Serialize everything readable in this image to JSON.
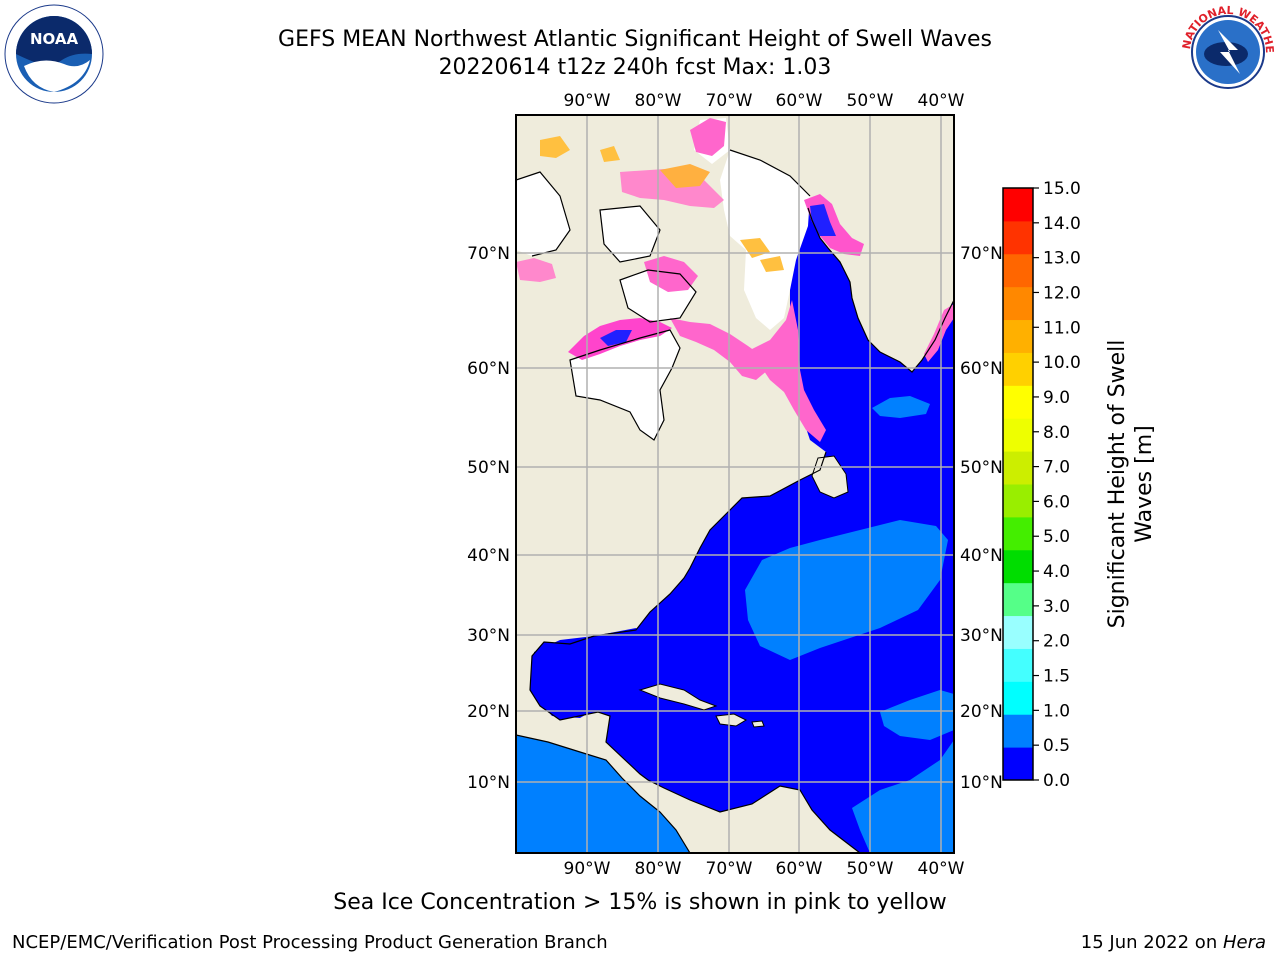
{
  "title_line1": "GEFS MEAN Northwest Atlantic Significant Height of Swell Waves",
  "title_line2": "20220614 t12z 240h fcst   Max: 1.03",
  "logos": {
    "left": "NOAA",
    "right": "National Weather Service"
  },
  "map": {
    "projection": "cylindrical",
    "lon_ticks": [
      "90°W",
      "80°W",
      "70°W",
      "60°W",
      "50°W",
      "40°W"
    ],
    "lat_ticks": [
      "70°N",
      "60°N",
      "50°N",
      "40°N",
      "30°N",
      "20°N",
      "10°N"
    ],
    "lon_range": [
      -100,
      -38
    ],
    "lat_range": [
      0,
      80
    ],
    "land_color": "#efecdc",
    "sea_ice_colors": [
      "#ff66cc",
      "#ff44aa",
      "#ffaa33",
      "#ffe040"
    ]
  },
  "colorbar": {
    "label_line1": "Significant Height of Swell",
    "label_line2": "Waves [m]",
    "ticks": [
      "15.0",
      "14.0",
      "13.0",
      "12.0",
      "11.0",
      "10.0",
      "9.0",
      "8.0",
      "7.0",
      "6.0",
      "5.0",
      "4.0",
      "3.0",
      "2.0",
      "1.5",
      "1.0",
      "0.5",
      "0.0"
    ],
    "colors_bottom_to_top": [
      "#0000ff",
      "#0080ff",
      "#00ffff",
      "#44ffff",
      "#99ffff",
      "#55ff88",
      "#00dd00",
      "#44ee00",
      "#99ee00",
      "#ccee00",
      "#eeff00",
      "#ffff00",
      "#ffd000",
      "#ffb000",
      "#ff8800",
      "#ff6600",
      "#ff3300",
      "#ff0000"
    ]
  },
  "footnote": "Sea Ice Concentration > 15% is shown in pink to yellow",
  "footer_left": "NCEP/EMC/Verification Post Processing Product Generation Branch",
  "footer_right_prefix": "15 Jun 2022 on ",
  "footer_right_host": "Hera"
}
